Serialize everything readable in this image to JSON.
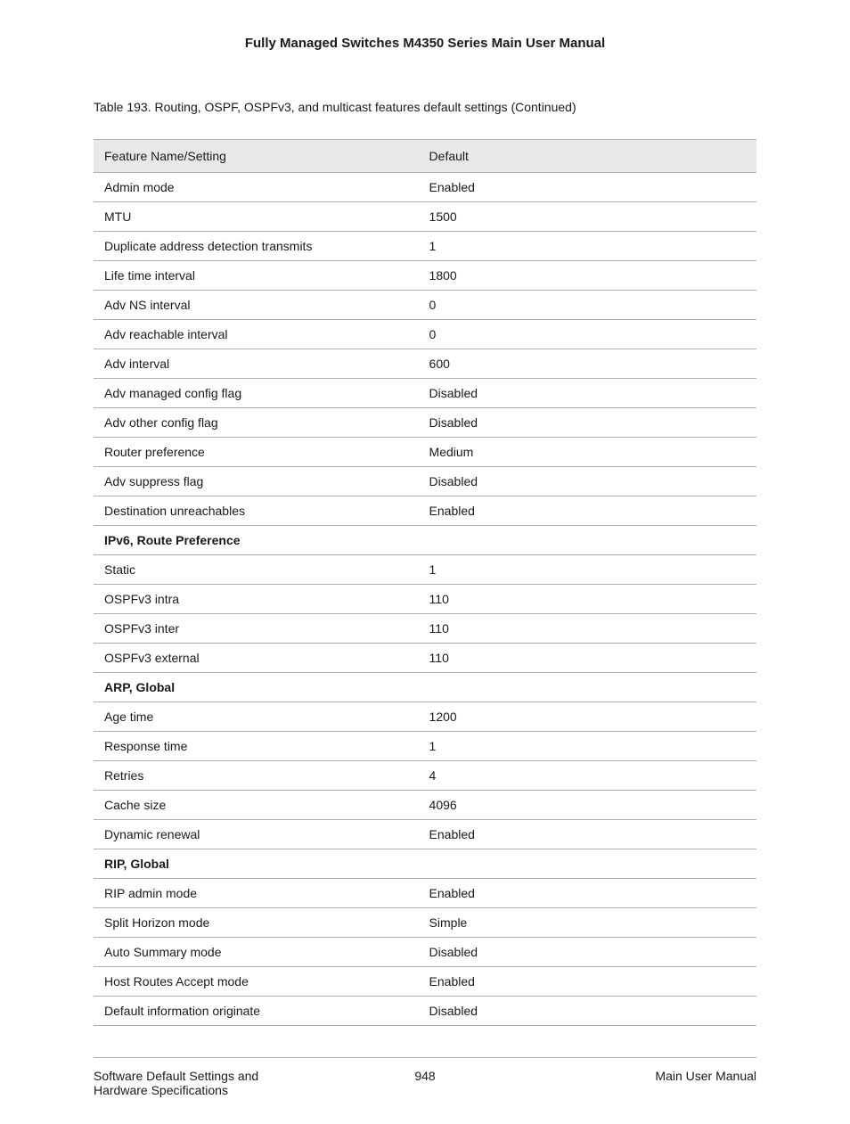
{
  "header": {
    "title": "Fully Managed Switches M4350 Series Main User Manual"
  },
  "caption": "Table 193. Routing, OSPF, OSPFv3, and multicast features default settings (Continued)",
  "table": {
    "columns": [
      "Feature Name/Setting",
      "Default"
    ],
    "rows": [
      {
        "type": "normal",
        "cells": [
          "Admin mode",
          "Enabled"
        ]
      },
      {
        "type": "normal",
        "cells": [
          "MTU",
          "1500"
        ]
      },
      {
        "type": "normal",
        "cells": [
          "Duplicate address detection transmits",
          "1"
        ]
      },
      {
        "type": "normal",
        "cells": [
          "Life time interval",
          "1800"
        ]
      },
      {
        "type": "normal",
        "cells": [
          "Adv NS interval",
          "0"
        ]
      },
      {
        "type": "normal",
        "cells": [
          "Adv reachable interval",
          "0"
        ]
      },
      {
        "type": "normal",
        "cells": [
          "Adv interval",
          "600"
        ]
      },
      {
        "type": "normal",
        "cells": [
          "Adv managed config flag",
          "Disabled"
        ]
      },
      {
        "type": "normal",
        "cells": [
          "Adv other config flag",
          "Disabled"
        ]
      },
      {
        "type": "normal",
        "cells": [
          "Router preference",
          "Medium"
        ]
      },
      {
        "type": "normal",
        "cells": [
          "Adv suppress flag",
          "Disabled"
        ]
      },
      {
        "type": "normal",
        "cells": [
          "Destination unreachables",
          "Enabled"
        ]
      },
      {
        "type": "section",
        "cells": [
          "IPv6, Route Preference",
          ""
        ]
      },
      {
        "type": "normal",
        "cells": [
          "Static",
          "1"
        ]
      },
      {
        "type": "normal",
        "cells": [
          "OSPFv3 intra",
          "110"
        ]
      },
      {
        "type": "normal",
        "cells": [
          "OSPFv3 inter",
          "110"
        ]
      },
      {
        "type": "normal",
        "cells": [
          "OSPFv3 external",
          "110"
        ]
      },
      {
        "type": "section",
        "cells": [
          "ARP, Global",
          ""
        ]
      },
      {
        "type": "normal",
        "cells": [
          "Age time",
          "1200"
        ]
      },
      {
        "type": "normal",
        "cells": [
          "Response time",
          "1"
        ]
      },
      {
        "type": "normal",
        "cells": [
          "Retries",
          "4"
        ]
      },
      {
        "type": "normal",
        "cells": [
          "Cache size",
          "4096"
        ]
      },
      {
        "type": "normal",
        "cells": [
          "Dynamic renewal",
          "Enabled"
        ]
      },
      {
        "type": "section",
        "cells": [
          "RIP, Global",
          ""
        ]
      },
      {
        "type": "normal",
        "cells": [
          "RIP admin mode",
          "Enabled"
        ]
      },
      {
        "type": "normal",
        "cells": [
          "Split Horizon mode",
          "Simple"
        ]
      },
      {
        "type": "normal",
        "cells": [
          "Auto Summary mode",
          "Disabled"
        ]
      },
      {
        "type": "normal",
        "cells": [
          "Host Routes Accept mode",
          "Enabled"
        ]
      },
      {
        "type": "normal",
        "cells": [
          "Default information originate",
          "Disabled"
        ]
      }
    ]
  },
  "footer": {
    "left_line1": "Software Default Settings and",
    "left_line2": "Hardware Specifications",
    "page_number": "948",
    "right": "Main User Manual"
  }
}
